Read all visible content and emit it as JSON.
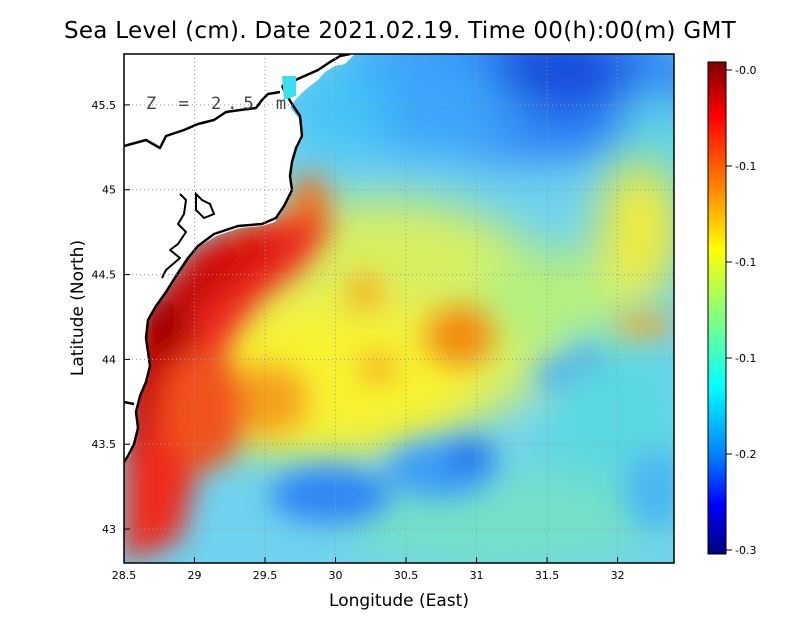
{
  "title": "Sea Level (cm). Date 2021.02.19. Time 00(h):00(m) GMT",
  "depth_label": "Z = 2.5 m",
  "x_axis": {
    "label": "Longitude (East)",
    "range": [
      28.5,
      32.4
    ],
    "ticks": [
      "28.5",
      "29",
      "29.5",
      "30",
      "30.5",
      "31",
      "31.5",
      "32"
    ]
  },
  "y_axis": {
    "label": "Latitude (North)",
    "range": [
      42.8,
      45.8
    ],
    "ticks": [
      "43",
      "43.5",
      "44",
      "44.5",
      "45",
      "45.5"
    ]
  },
  "colorbar": {
    "range": [
      -0.3,
      0.0
    ],
    "labels": [
      "-0.0",
      "-0.1",
      "-0.1",
      "-0.1",
      "-0.2",
      "-0.3"
    ],
    "colors": [
      "#7f0000",
      "#ff0000",
      "#ff8000",
      "#ffff00",
      "#80ff80",
      "#00ffff",
      "#0080ff",
      "#0000ff",
      "#00007f"
    ]
  },
  "map": {
    "grid": true,
    "land_color": "#ffffff",
    "coast_color": "#000000"
  }
}
